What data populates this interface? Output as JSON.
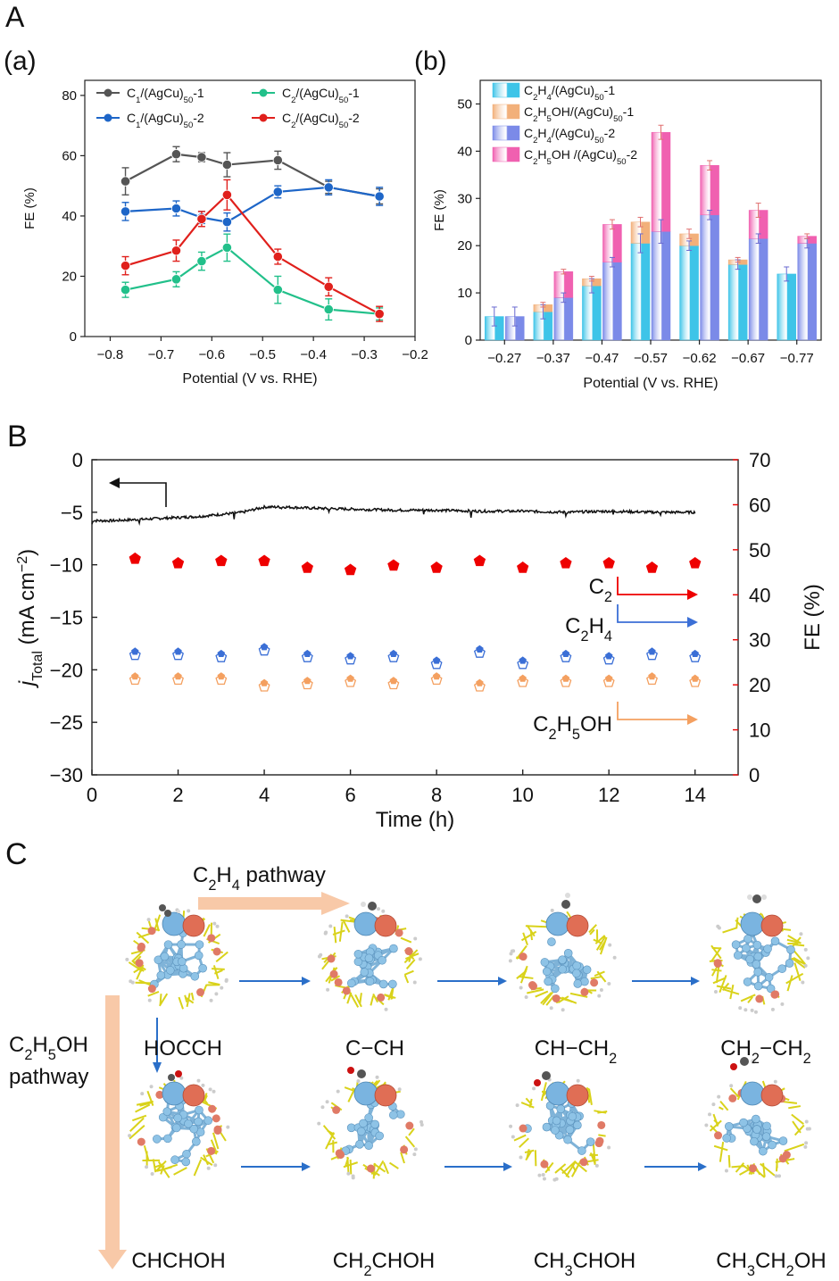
{
  "panel_labels": {
    "A": "A",
    "a": "(a)",
    "b": "(b)",
    "B": "B",
    "C": "C"
  },
  "colors": {
    "C1_1": "#555555",
    "C1_2": "#1e66c8",
    "C2_1": "#22c08a",
    "C2_2": "#e0201c",
    "bar_c2h4_1": "#3ec4e8",
    "bar_c2h5oh_1": "#f2b07a",
    "bar_c2h4_2": "#7b8ae8",
    "bar_c2h5oh_2": "#f060b0",
    "j_line": "#111111",
    "fe_c2": "#ee0000",
    "fe_c2h4": "#3b6fd6",
    "fe_c2h5oh": "#f4a060",
    "pathway_arrow": "#f8c9a8",
    "step_arrow": "#2a6fc9"
  },
  "chart_data": [
    {
      "id": "a",
      "type": "line",
      "xlabel": "Potential (V vs. RHE)",
      "ylabel": "FE (%)",
      "xlim": [
        -0.85,
        -0.2
      ],
      "ylim": [
        0,
        85
      ],
      "xticks": [
        "−0.8",
        "−0.7",
        "−0.6",
        "−0.5",
        "−0.4",
        "−0.3",
        "−0.2"
      ],
      "xtick_values": [
        -0.8,
        -0.7,
        -0.6,
        -0.5,
        -0.4,
        -0.3,
        -0.2
      ],
      "yticks": [
        "0",
        "20",
        "40",
        "60",
        "80"
      ],
      "ytick_values": [
        0,
        20,
        40,
        60,
        80
      ],
      "x": [
        -0.77,
        -0.67,
        -0.62,
        -0.57,
        -0.47,
        -0.37,
        -0.27
      ],
      "series": [
        {
          "key": "C1_1",
          "name_main": "C",
          "name_sub": "1",
          "name_rest": "/(AgCu)",
          "name_sub2": "50",
          "name_end": "-1",
          "values": [
            51.5,
            60.5,
            59.5,
            57,
            58.5,
            49.5,
            46.5
          ],
          "errors": [
            4.5,
            2.5,
            1.5,
            4,
            3,
            2,
            2.5
          ]
        },
        {
          "key": "C2_1",
          "name_main": "C",
          "name_sub": "2",
          "name_rest": "/(AgCu)",
          "name_sub2": "50",
          "name_end": "-1",
          "values": [
            15.5,
            19,
            25,
            29.5,
            15.5,
            9,
            7.5
          ],
          "errors": [
            2.5,
            2.5,
            3,
            4.5,
            4.5,
            3.5,
            2
          ]
        },
        {
          "key": "C1_2",
          "name_main": "C",
          "name_sub": "1",
          "name_rest": "/(AgCu)",
          "name_sub2": "50",
          "name_end": "-2",
          "values": [
            41.5,
            42.5,
            39.5,
            38,
            48,
            49.5,
            46.5
          ],
          "errors": [
            3,
            2.5,
            2,
            3,
            2,
            2.5,
            3
          ]
        },
        {
          "key": "C2_2",
          "name_main": "C",
          "name_sub": "2",
          "name_rest": "/(AgCu)",
          "name_sub2": "50",
          "name_end": "-2",
          "values": [
            23.5,
            28.5,
            39,
            47,
            26.5,
            16.5,
            7.5
          ],
          "errors": [
            3,
            3.5,
            2.5,
            5,
            2.5,
            3,
            2.5
          ]
        }
      ],
      "legend": "top, two columns"
    },
    {
      "id": "b",
      "type": "bar",
      "xlabel": "Potential (V vs. RHE)",
      "ylabel": "FE (%)",
      "ylim": [
        0,
        55
      ],
      "yticks": [
        "0",
        "10",
        "20",
        "30",
        "40",
        "50"
      ],
      "ytick_values": [
        0,
        10,
        20,
        30,
        40,
        50
      ],
      "categories": [
        "−0.27",
        "−0.37",
        "−0.47",
        "−0.57",
        "−0.62",
        "−0.67",
        "−0.77"
      ],
      "series": [
        {
          "key": "c2h4_1",
          "label": [
            "C",
            "2",
            "H",
            "4",
            "/(AgCu)",
            "50",
            "-1"
          ],
          "values": [
            5,
            6,
            11.5,
            20.5,
            20,
            16,
            14
          ],
          "errors": [
            2,
            1.5,
            1.5,
            2,
            1,
            1,
            1.5
          ]
        },
        {
          "key": "c2h5oh_1",
          "label": [
            "C",
            "2",
            "H",
            "5",
            "OH/(AgCu)",
            "50",
            "-1"
          ],
          "values": [
            0,
            1.5,
            1.5,
            4.5,
            2.5,
            1,
            0
          ],
          "errors": [
            0,
            0.5,
            0.5,
            1,
            1,
            0.5,
            0
          ]
        },
        {
          "key": "c2h4_2",
          "label": [
            "C",
            "2",
            "H",
            "4",
            "/(AgCu)",
            "50",
            "-2"
          ],
          "values": [
            5,
            9,
            16.5,
            23,
            26.5,
            21.5,
            20.5
          ],
          "errors": [
            2,
            1,
            1,
            2.5,
            1,
            1,
            1
          ]
        },
        {
          "key": "c2h5oh_2",
          "label": [
            "C",
            "2",
            "H",
            "5",
            "OH /(AgCu)",
            "50",
            "-2"
          ],
          "values": [
            0,
            5.5,
            8,
            21,
            10.5,
            6,
            1.5
          ],
          "errors": [
            0,
            0.5,
            1,
            1.5,
            1,
            1.5,
            0.5
          ]
        }
      ],
      "legend": "top-left"
    },
    {
      "id": "B",
      "type": "scatter",
      "xlabel": "Time (h)",
      "ylabel_left": [
        "j",
        "Total",
        " (mA cm",
        "−2",
        ")"
      ],
      "ylabel_right": "FE (%)",
      "xlim": [
        0,
        15
      ],
      "ylim_left": [
        -30,
        0
      ],
      "ylim_right": [
        0,
        70
      ],
      "xticks": [
        "0",
        "2",
        "4",
        "6",
        "8",
        "10",
        "12",
        "14"
      ],
      "xtick_values": [
        0,
        2,
        4,
        6,
        8,
        10,
        12,
        14
      ],
      "yticks_left": [
        "0",
        "−5",
        "−10",
        "−15",
        "−20",
        "−25",
        "−30"
      ],
      "ytick_values_left": [
        0,
        -5,
        -10,
        -15,
        -20,
        -25,
        -30
      ],
      "yticks_right": [
        "70",
        "60",
        "50",
        "40",
        "30",
        "20",
        "10",
        "0"
      ],
      "ytick_values_right": [
        70,
        60,
        50,
        40,
        30,
        20,
        10,
        0
      ],
      "current_trace": {
        "t": [
          0,
          0.5,
          1,
          1.5,
          2,
          2.5,
          3,
          3.5,
          4,
          4.5,
          5,
          6,
          7,
          8,
          9,
          10,
          11,
          12,
          13,
          14
        ],
        "j": [
          -5.8,
          -5.8,
          -5.7,
          -5.6,
          -5.5,
          -5.4,
          -5.2,
          -5.0,
          -4.5,
          -4.5,
          -4.6,
          -4.7,
          -4.8,
          -4.8,
          -4.9,
          -4.9,
          -5.0,
          -4.9,
          -5.0,
          -5.0
        ]
      },
      "time": [
        1,
        2,
        3,
        4,
        5,
        6,
        7,
        8,
        9,
        10,
        11,
        12,
        13,
        14
      ],
      "series": [
        {
          "key": "fe_c2",
          "label": [
            "C",
            "2"
          ],
          "values": [
            48,
            47,
            47.5,
            47.5,
            46,
            45.5,
            46.5,
            46,
            47.5,
            46,
            47,
            47,
            46,
            47
          ]
        },
        {
          "key": "fe_c2h4",
          "label": [
            "C",
            "2",
            "H",
            "4"
          ],
          "values": [
            27,
            27,
            26.5,
            28,
            26.5,
            26,
            26.5,
            25,
            27.5,
            25,
            26.5,
            26,
            27,
            26.5
          ]
        },
        {
          "key": "fe_c2h5oh",
          "label": [
            "C",
            "2",
            "H",
            "5",
            "OH"
          ],
          "values": [
            21.5,
            21.5,
            21.5,
            20,
            20.5,
            21,
            20.5,
            21.5,
            20,
            21,
            21,
            21,
            21.5,
            21
          ]
        }
      ]
    }
  ],
  "panel_C": {
    "c2h4_pathway_label": [
      "C",
      "2",
      "H",
      "4",
      " pathway"
    ],
    "c2h5oh_pathway_label": [
      "C",
      "2",
      "H",
      "5",
      "OH",
      "pathway"
    ],
    "top_row": [
      {
        "parts": [
          "HOCCH"
        ]
      },
      {
        "parts": [
          "C−CH"
        ]
      },
      {
        "parts": [
          "CH−CH",
          "2"
        ]
      },
      {
        "parts": [
          "CH",
          "2",
          "−CH",
          "2"
        ]
      }
    ],
    "bottom_row": [
      {
        "parts": [
          "CHCHOH"
        ]
      },
      {
        "parts": [
          "CH",
          "2",
          "CHOH"
        ]
      },
      {
        "parts": [
          "CH",
          "3",
          "CHOH"
        ]
      },
      {
        "parts": [
          "CH",
          "3",
          "CH",
          "2",
          "OH"
        ]
      }
    ]
  }
}
